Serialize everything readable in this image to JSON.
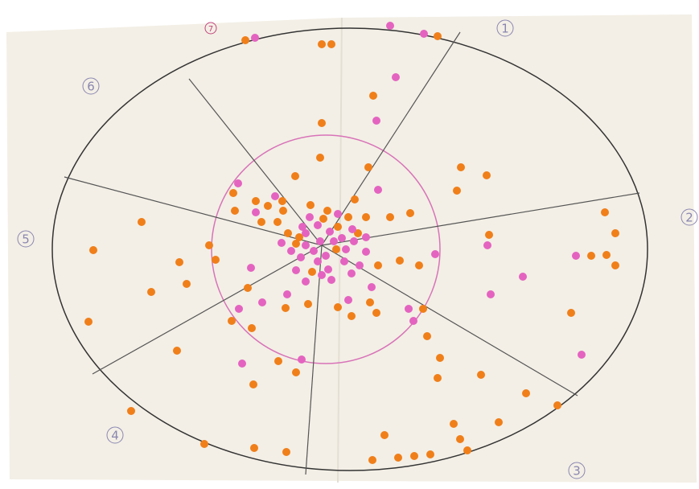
{
  "sectors": {
    "labels": [
      "1",
      "2",
      "3",
      "4",
      "5",
      "6",
      "7"
    ]
  }
}
